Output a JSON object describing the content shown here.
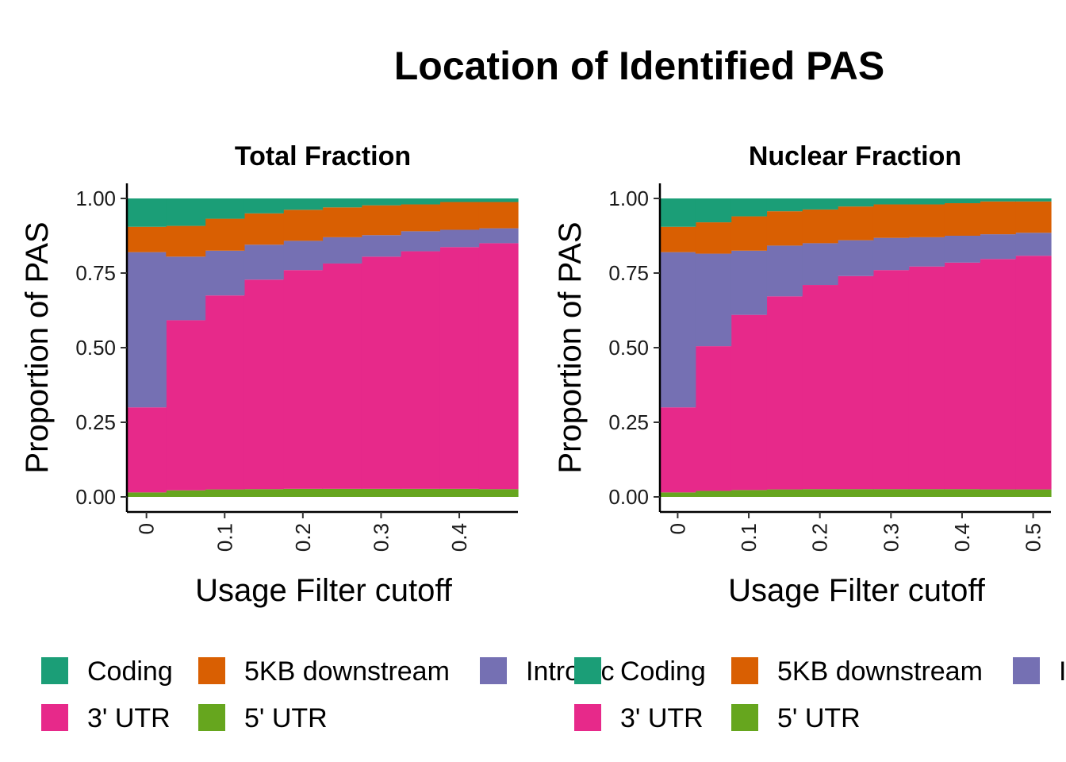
{
  "title": "Location of Identified PAS",
  "legend_labels": {
    "coding": "Coding",
    "downstream": "5KB downstream",
    "intronic": "Intronic",
    "utr3": "3' UTR",
    "utr5": "5' UTR"
  },
  "colors": {
    "coding": "#1b9e77",
    "downstream": "#d95f02",
    "intronic": "#7570b3",
    "utr3": "#e7298a",
    "utr5": "#66a61e"
  },
  "chart_data": [
    {
      "type": "area",
      "stacked": true,
      "step": true,
      "title": "Total Fraction",
      "xlabel": "Usage Filter cutoff",
      "ylabel": "Proportion of PAS",
      "x": [
        0,
        0.05,
        0.1,
        0.15,
        0.2,
        0.25,
        0.3,
        0.35,
        0.4,
        0.45
      ],
      "xlim": [
        -0.025,
        0.475
      ],
      "xticks": [
        "0",
        "0.1",
        "0.2",
        "0.3",
        "0.4"
      ],
      "ylim": [
        0,
        1
      ],
      "yticks": [
        "0.00",
        "0.25",
        "0.50",
        "0.75",
        "1.00"
      ],
      "series": [
        {
          "name": "5' UTR",
          "key": "utr5",
          "values": [
            0.015,
            0.022,
            0.025,
            0.026,
            0.027,
            0.027,
            0.027,
            0.027,
            0.027,
            0.026
          ]
        },
        {
          "name": "3' UTR",
          "key": "utr3",
          "values": [
            0.285,
            0.57,
            0.65,
            0.702,
            0.733,
            0.755,
            0.778,
            0.796,
            0.81,
            0.824
          ]
        },
        {
          "name": "Intronic",
          "key": "intronic",
          "values": [
            0.52,
            0.213,
            0.15,
            0.117,
            0.098,
            0.088,
            0.072,
            0.067,
            0.058,
            0.05
          ]
        },
        {
          "name": "5KB downstream",
          "key": "downstream",
          "values": [
            0.085,
            0.103,
            0.107,
            0.105,
            0.104,
            0.1,
            0.1,
            0.09,
            0.093,
            0.088
          ]
        },
        {
          "name": "Coding",
          "key": "coding",
          "values": [
            0.095,
            0.092,
            0.068,
            0.05,
            0.038,
            0.03,
            0.023,
            0.02,
            0.012,
            0.012
          ]
        }
      ],
      "grid": false,
      "legend": "bottom"
    },
    {
      "type": "area",
      "stacked": true,
      "step": true,
      "title": "Nuclear Fraction",
      "xlabel": "Usage Filter cutoff",
      "ylabel": "Proportion of PAS",
      "x": [
        0,
        0.05,
        0.1,
        0.15,
        0.2,
        0.25,
        0.3,
        0.35,
        0.4,
        0.45,
        0.5
      ],
      "xlim": [
        -0.025,
        0.525
      ],
      "xticks": [
        "0",
        "0.1",
        "0.2",
        "0.3",
        "0.4",
        "0.5"
      ],
      "ylim": [
        0,
        1
      ],
      "yticks": [
        "0.00",
        "0.25",
        "0.50",
        "0.75",
        "1.00"
      ],
      "series": [
        {
          "name": "5' UTR",
          "key": "utr5",
          "values": [
            0.015,
            0.02,
            0.023,
            0.025,
            0.026,
            0.026,
            0.026,
            0.026,
            0.026,
            0.025,
            0.025
          ]
        },
        {
          "name": "3' UTR",
          "key": "utr3",
          "values": [
            0.285,
            0.485,
            0.587,
            0.647,
            0.684,
            0.714,
            0.734,
            0.746,
            0.759,
            0.772,
            0.783
          ]
        },
        {
          "name": "Intronic",
          "key": "intronic",
          "values": [
            0.52,
            0.31,
            0.215,
            0.17,
            0.14,
            0.12,
            0.108,
            0.098,
            0.09,
            0.083,
            0.077
          ]
        },
        {
          "name": "5KB downstream",
          "key": "downstream",
          "values": [
            0.085,
            0.105,
            0.115,
            0.115,
            0.113,
            0.113,
            0.112,
            0.11,
            0.109,
            0.11,
            0.105
          ]
        },
        {
          "name": "Coding",
          "key": "coding",
          "values": [
            0.095,
            0.08,
            0.06,
            0.043,
            0.037,
            0.027,
            0.02,
            0.02,
            0.016,
            0.01,
            0.01
          ]
        }
      ],
      "grid": false,
      "legend": "bottom"
    }
  ]
}
